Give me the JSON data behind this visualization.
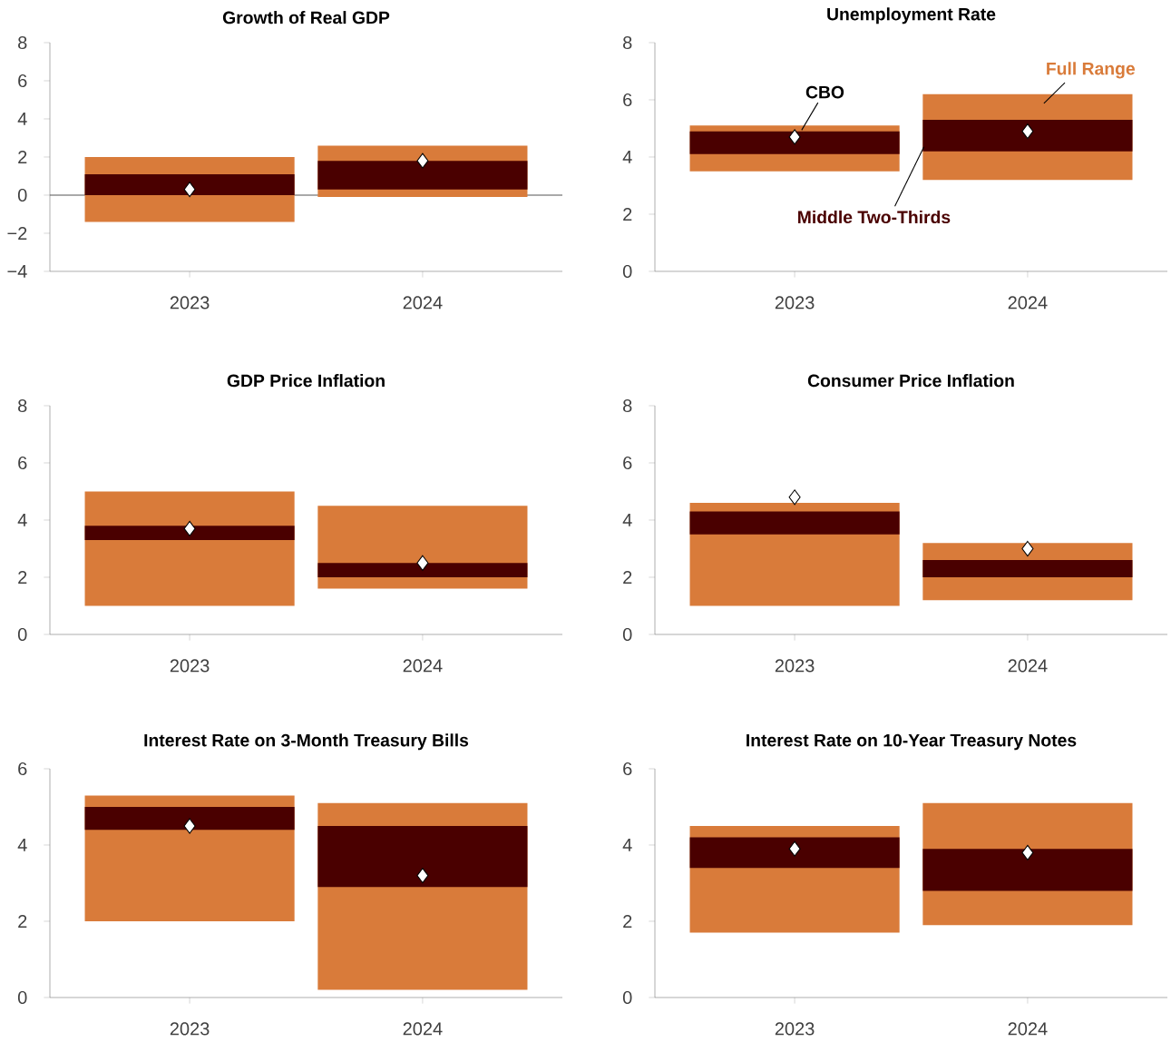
{
  "chart_data": [
    {
      "type": "bar",
      "title": "Growth of Real GDP",
      "categories": [
        "2023",
        "2024"
      ],
      "ylim": [
        -4,
        8
      ],
      "yticks": [
        {
          "value": -4,
          "label": "−4"
        },
        {
          "value": -2,
          "label": "−2"
        },
        0,
        2,
        4,
        6,
        8
      ],
      "ref_lines": [
        {
          "axis": "y",
          "value": 0,
          "color": "#555555"
        }
      ],
      "series": [
        {
          "color": "#d97b3a",
          "base": [
            -1.4,
            -0.1
          ],
          "values": [
            3.4,
            2.7
          ]
        },
        {
          "color": "#4a0000",
          "base": [
            0,
            0.3
          ],
          "values": [
            1.1,
            1.5
          ]
        },
        {
          "type": "scatter",
          "marker": "diamond",
          "color": "#ffffff",
          "values": [
            0.3,
            1.8
          ]
        }
      ]
    },
    {
      "type": "bar",
      "title": "Unemployment Rate",
      "categories": [
        "2023",
        "2024"
      ],
      "ylim": [
        0,
        8
      ],
      "yticks": [
        0,
        2,
        4,
        6,
        8
      ],
      "series": [
        {
          "name": "Full Range",
          "color": "#d97b3a",
          "base": [
            3.5,
            3.2
          ],
          "values": [
            1.6,
            3.0
          ]
        },
        {
          "name": "Middle Two-Thirds",
          "color": "#4a0000",
          "base": [
            4.1,
            4.2
          ],
          "values": [
            0.8,
            1.1
          ]
        },
        {
          "name": "CBO",
          "type": "scatter",
          "marker": "diamond",
          "color": "#ffffff",
          "values": [
            4.7,
            4.9
          ]
        }
      ]
    },
    {
      "type": "bar",
      "title": "GDP Price Inflation",
      "categories": [
        "2023",
        "2024"
      ],
      "ylim": [
        0,
        8
      ],
      "yticks": [
        0,
        2,
        4,
        6,
        8
      ],
      "series": [
        {
          "color": "#d97b3a",
          "base": [
            1.0,
            1.6
          ],
          "values": [
            4.0,
            2.9
          ]
        },
        {
          "color": "#4a0000",
          "base": [
            3.3,
            2.0
          ],
          "values": [
            0.5,
            0.5
          ]
        },
        {
          "type": "scatter",
          "marker": "diamond",
          "color": "#ffffff",
          "values": [
            3.7,
            2.5
          ]
        }
      ]
    },
    {
      "type": "bar",
      "title": "Consumer Price Inflation",
      "categories": [
        "2023",
        "2024"
      ],
      "ylim": [
        0,
        8
      ],
      "yticks": [
        0,
        2,
        4,
        6,
        8
      ],
      "series": [
        {
          "color": "#d97b3a",
          "base": [
            1.0,
            1.2
          ],
          "values": [
            3.6,
            2.0
          ]
        },
        {
          "color": "#4a0000",
          "base": [
            3.5,
            2.0
          ],
          "values": [
            0.8,
            0.6
          ]
        },
        {
          "type": "scatter",
          "marker": "diamond",
          "color": "#ffffff",
          "values": [
            4.8,
            3.0
          ]
        }
      ]
    },
    {
      "type": "bar",
      "title": "Interest Rate on 3-Month Treasury Bills",
      "categories": [
        "2023",
        "2024"
      ],
      "ylim": [
        0,
        6
      ],
      "yticks": [
        0,
        2,
        4,
        6
      ],
      "series": [
        {
          "color": "#d97b3a",
          "base": [
            2.0,
            0.2
          ],
          "values": [
            3.3,
            4.9
          ]
        },
        {
          "color": "#4a0000",
          "base": [
            4.4,
            2.9
          ],
          "values": [
            0.6,
            1.6
          ]
        },
        {
          "type": "scatter",
          "marker": "diamond",
          "color": "#ffffff",
          "values": [
            4.5,
            3.2
          ]
        }
      ]
    },
    {
      "type": "bar",
      "title": "Interest Rate on 10-Year Treasury Notes",
      "categories": [
        "2023",
        "2024"
      ],
      "ylim": [
        0,
        6
      ],
      "yticks": [
        0,
        2,
        4,
        6
      ],
      "series": [
        {
          "color": "#d97b3a",
          "base": [
            1.7,
            1.9
          ],
          "values": [
            2.8,
            3.2
          ]
        },
        {
          "color": "#4a0000",
          "base": [
            3.4,
            2.8
          ],
          "values": [
            0.8,
            1.1
          ]
        },
        {
          "type": "scatter",
          "marker": "diamond",
          "color": "#ffffff",
          "values": [
            3.9,
            3.8
          ]
        }
      ]
    }
  ]
}
